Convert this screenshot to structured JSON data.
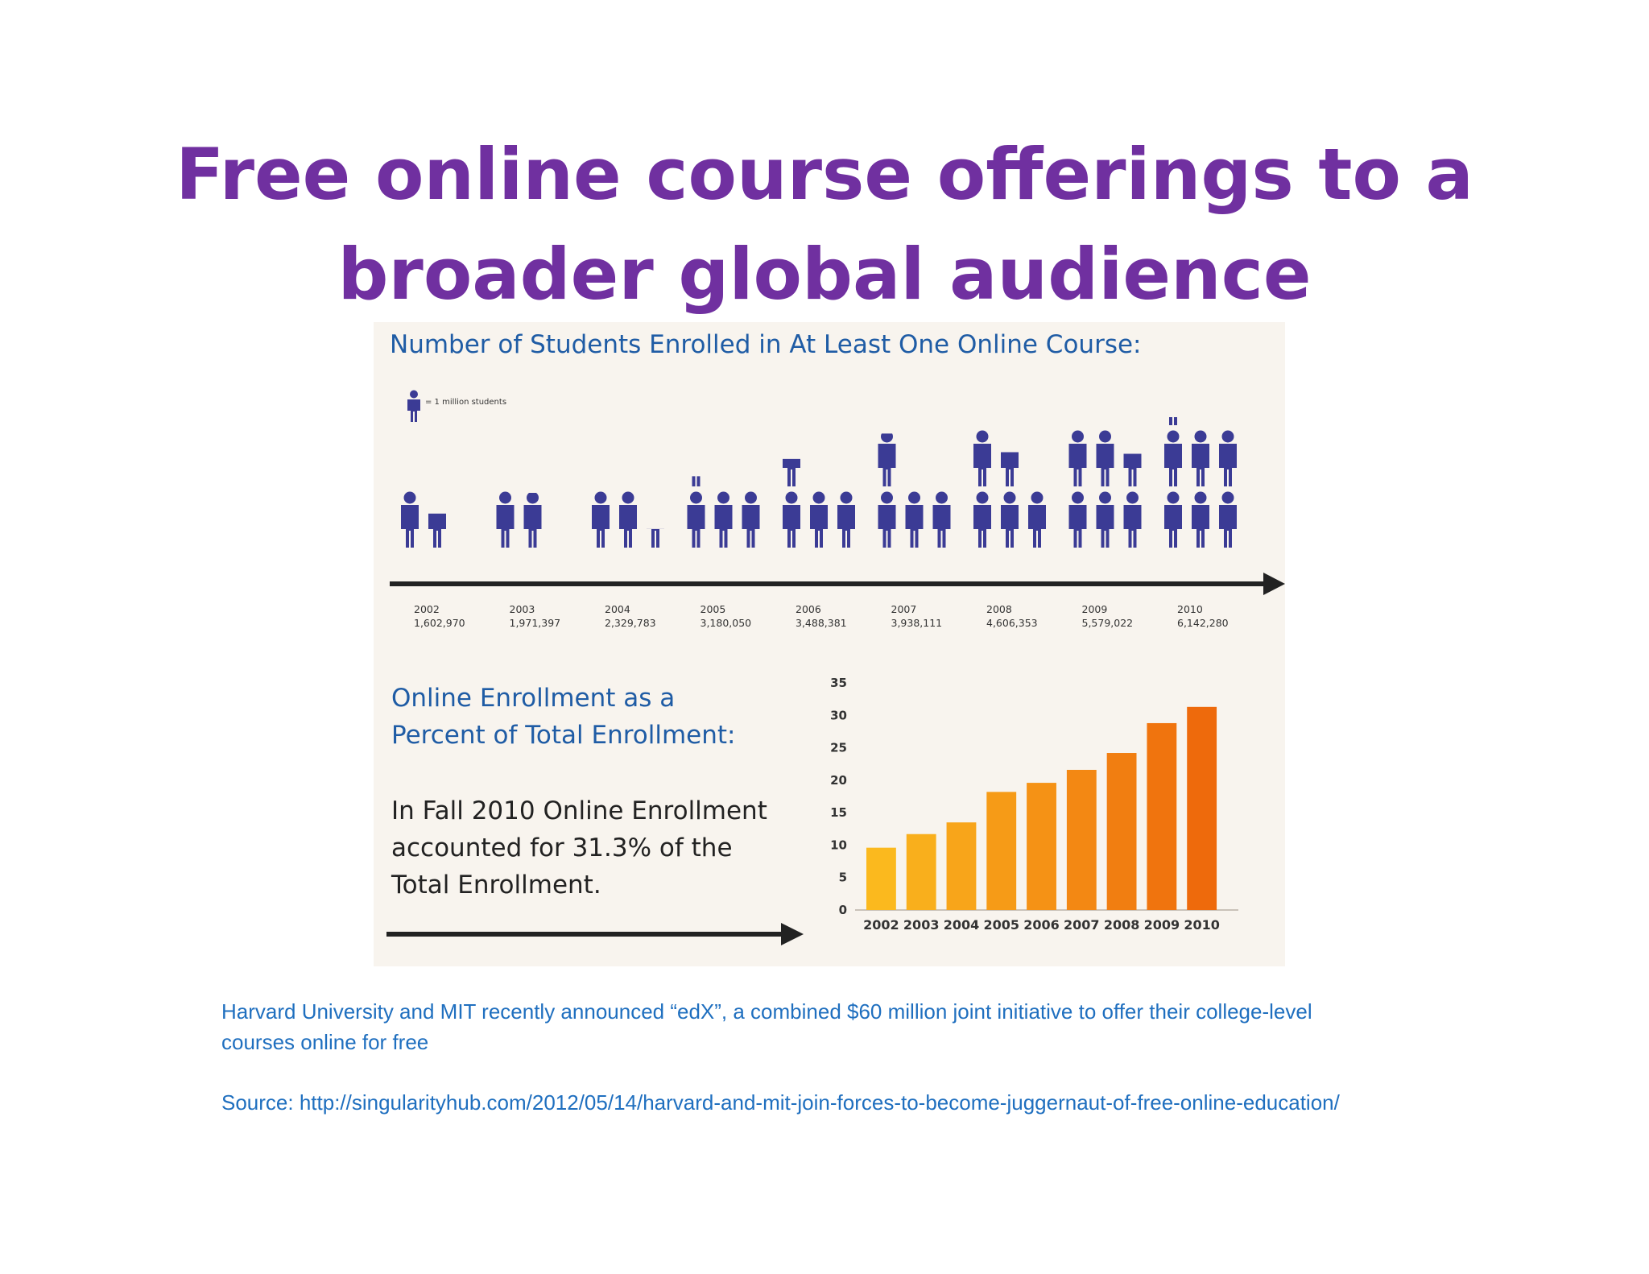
{
  "slide": {
    "title_line1": "Free online course offerings to a",
    "title_line2": "broader global audience",
    "caption_line1": "Harvard University and MIT recently announced “edX”, a combined $60 million joint initiative to offer their college-level",
    "caption_line2": "courses online for free",
    "source": "Source: http://singularityhub.com/2012/05/14/harvard-and-mit-join-forces-to-become-juggernaut-of-free-online-education/"
  },
  "colors": {
    "title": "#7030a0",
    "caption": "#1f6fbf",
    "infographic_heading": "#1f5ca5",
    "person_icon": "#3b3b95",
    "bar_start": "#fbb91e",
    "bar_end": "#ee6a0c"
  },
  "chart_data": [
    {
      "type": "pictograph",
      "title": "Number of Students Enrolled in At Least One Online Course:",
      "legend": "= 1 million students",
      "unit_value": 1000000,
      "icon": "person-icon",
      "categories": [
        "2002",
        "2003",
        "2004",
        "2005",
        "2006",
        "2007",
        "2008",
        "2009",
        "2010"
      ],
      "values": [
        1602970,
        1971397,
        2329783,
        3180050,
        3488381,
        3938111,
        4606353,
        5579022,
        6142280
      ],
      "value_labels": [
        "1,602,970",
        "1,971,397",
        "2,329,783",
        "3,180,050",
        "3,488,381",
        "3,938,111",
        "4,606,353",
        "5,579,022",
        "6,142,280"
      ]
    },
    {
      "type": "bar",
      "title_line1": "Online Enrollment as a",
      "title_line2": "Percent of Total Enrollment:",
      "annotation_line1": "In Fall 2010 Online Enrollment",
      "annotation_line2": "accounted for 31.3% of the",
      "annotation_line3": "Total Enrollment.",
      "categories": [
        "2002",
        "2003",
        "2004",
        "2005",
        "2006",
        "2007",
        "2008",
        "2009",
        "2010"
      ],
      "values": [
        9.6,
        11.7,
        13.5,
        18.2,
        19.6,
        21.6,
        24.2,
        28.8,
        31.3
      ],
      "yticks": [
        0,
        5,
        10,
        15,
        20,
        25,
        30,
        35
      ],
      "ylim": [
        0,
        35
      ],
      "grid": false
    }
  ]
}
